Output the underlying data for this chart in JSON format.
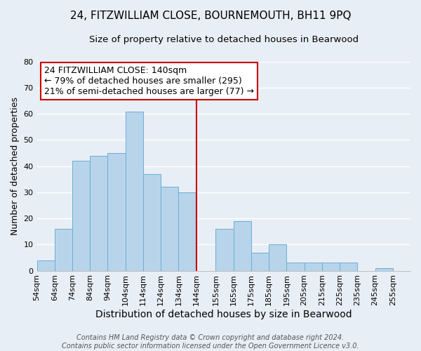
{
  "title": "24, FITZWILLIAM CLOSE, BOURNEMOUTH, BH11 9PQ",
  "subtitle": "Size of property relative to detached houses in Bearwood",
  "xlabel": "Distribution of detached houses by size in Bearwood",
  "ylabel": "Number of detached properties",
  "bin_labels": [
    "54sqm",
    "64sqm",
    "74sqm",
    "84sqm",
    "94sqm",
    "104sqm",
    "114sqm",
    "124sqm",
    "134sqm",
    "144sqm",
    "155sqm",
    "165sqm",
    "175sqm",
    "185sqm",
    "195sqm",
    "205sqm",
    "215sqm",
    "225sqm",
    "235sqm",
    "245sqm",
    "255sqm"
  ],
  "bin_left": [
    54,
    64,
    74,
    84,
    94,
    104,
    114,
    124,
    134,
    144,
    155,
    165,
    175,
    185,
    195,
    205,
    215,
    225,
    235,
    245,
    255
  ],
  "bin_width": [
    10,
    10,
    10,
    10,
    10,
    10,
    10,
    10,
    10,
    11,
    10,
    10,
    10,
    10,
    10,
    10,
    10,
    10,
    10,
    10,
    10
  ],
  "bar_heights": [
    4,
    16,
    42,
    44,
    45,
    61,
    37,
    32,
    30,
    0,
    16,
    19,
    7,
    10,
    3,
    3,
    3,
    3,
    0,
    1,
    0
  ],
  "bar_color": "#b8d4ea",
  "bar_edgecolor": "#6aaed6",
  "vline_x": 144,
  "vline_color": "#cc0000",
  "ylim": [
    0,
    80
  ],
  "yticks": [
    0,
    10,
    20,
    30,
    40,
    50,
    60,
    70,
    80
  ],
  "annotation_title": "24 FITZWILLIAM CLOSE: 140sqm",
  "annotation_line1": "← 79% of detached houses are smaller (295)",
  "annotation_line2": "21% of semi-detached houses are larger (77) →",
  "annotation_box_facecolor": "#ffffff",
  "annotation_box_edgecolor": "#cc0000",
  "footnote1": "Contains HM Land Registry data © Crown copyright and database right 2024.",
  "footnote2": "Contains public sector information licensed under the Open Government Licence v3.0.",
  "background_color": "#e8eef5",
  "grid_color": "#ffffff",
  "title_fontsize": 11,
  "subtitle_fontsize": 9.5,
  "xlabel_fontsize": 10,
  "ylabel_fontsize": 9,
  "tick_fontsize": 8,
  "annotation_fontsize": 9,
  "footnote_fontsize": 7
}
